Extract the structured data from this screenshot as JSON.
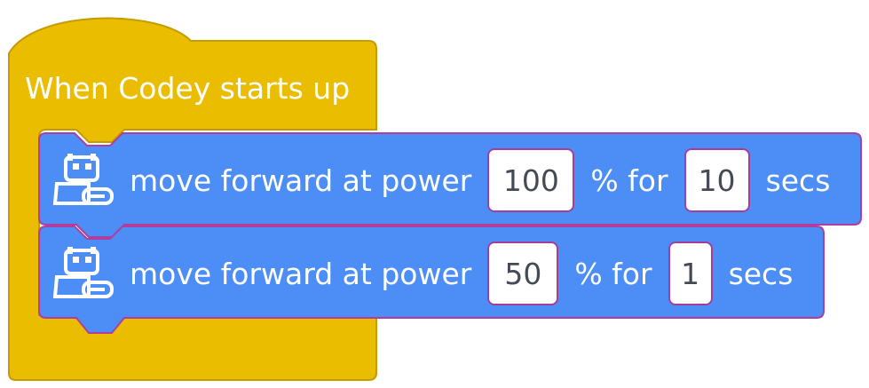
{
  "colors": {
    "event_block": "#eabd00",
    "event_block_border": "#c59b00",
    "motion_block": "#4c8ef5",
    "motion_block_border": "#b03e9e",
    "value_text": "#444b55"
  },
  "hat_block": {
    "label": "When Codey starts up"
  },
  "motion_blocks": [
    {
      "icon": "robot-icon",
      "label": "move forward at power",
      "power": "100",
      "for_label": "% for",
      "duration": "10",
      "unit": "secs"
    },
    {
      "icon": "robot-icon",
      "label": "move forward at power",
      "power": "50",
      "for_label": "% for",
      "duration": "1",
      "unit": "secs"
    }
  ]
}
